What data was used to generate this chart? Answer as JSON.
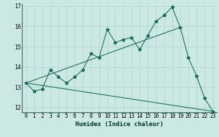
{
  "title": "",
  "xlabel": "Humidex (Indice chaleur)",
  "background_color": "#cce8e4",
  "grid_color": "#aad4cc",
  "line_color": "#1a6b5a",
  "xlim": [
    -0.5,
    23.5
  ],
  "ylim": [
    11.75,
    17.1
  ],
  "yticks": [
    12,
    13,
    14,
    15,
    16,
    17
  ],
  "xticks": [
    0,
    1,
    2,
    3,
    4,
    5,
    6,
    7,
    8,
    9,
    10,
    11,
    12,
    13,
    14,
    15,
    16,
    17,
    18,
    19,
    20,
    21,
    22,
    23
  ],
  "main_line_x": [
    0,
    1,
    2,
    3,
    4,
    5,
    6,
    7,
    8,
    9,
    10,
    11,
    12,
    13,
    14,
    15,
    16,
    17,
    18,
    19,
    20,
    21,
    22,
    23
  ],
  "main_line_y": [
    13.2,
    12.8,
    12.9,
    13.85,
    13.5,
    13.2,
    13.5,
    13.85,
    14.65,
    14.45,
    15.85,
    15.2,
    15.35,
    15.45,
    14.85,
    15.55,
    16.25,
    16.55,
    16.95,
    15.95,
    14.45,
    13.55,
    12.45,
    11.8
  ],
  "upper_trend_x": [
    0,
    19
  ],
  "upper_trend_y": [
    13.2,
    15.95
  ],
  "lower_trend_x": [
    0,
    23
  ],
  "lower_trend_y": [
    13.2,
    11.8
  ],
  "marker_size": 3.5,
  "line_width": 0.8,
  "tick_fontsize": 5.5,
  "xlabel_fontsize": 6.5
}
